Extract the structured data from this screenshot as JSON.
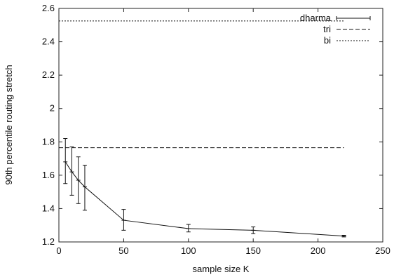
{
  "chart_data": {
    "type": "line",
    "title": "",
    "xlabel": "sample size K",
    "ylabel": "90th percentile routing stretch",
    "xlim": [
      0,
      250
    ],
    "ylim": [
      1.2,
      2.6
    ],
    "x_ticks": [
      "0",
      "50",
      "100",
      "150",
      "200",
      "250"
    ],
    "y_ticks": [
      "1.2",
      "1.4",
      "1.6",
      "1.8",
      "2",
      "2.2",
      "2.4",
      "2.6"
    ],
    "grid": false,
    "legend_position": "top-right",
    "series": [
      {
        "name": "dharma",
        "style": "solid-with-errorbars",
        "color": "#111111",
        "x": [
          5,
          10,
          15,
          20,
          50,
          100,
          150,
          220
        ],
        "y": [
          1.68,
          1.62,
          1.57,
          1.53,
          1.33,
          1.28,
          1.27,
          1.235
        ],
        "err_low": [
          1.55,
          1.48,
          1.43,
          1.39,
          1.27,
          1.26,
          1.25,
          1.23
        ],
        "err_high": [
          1.82,
          1.77,
          1.71,
          1.66,
          1.395,
          1.305,
          1.29,
          1.24
        ]
      },
      {
        "name": "tri",
        "style": "dashed",
        "color": "#111111",
        "x": [
          0,
          220
        ],
        "y": [
          1.765,
          1.765
        ]
      },
      {
        "name": "bi",
        "style": "dotted",
        "color": "#111111",
        "x": [
          0,
          220
        ],
        "y": [
          2.525,
          2.525
        ]
      }
    ]
  }
}
